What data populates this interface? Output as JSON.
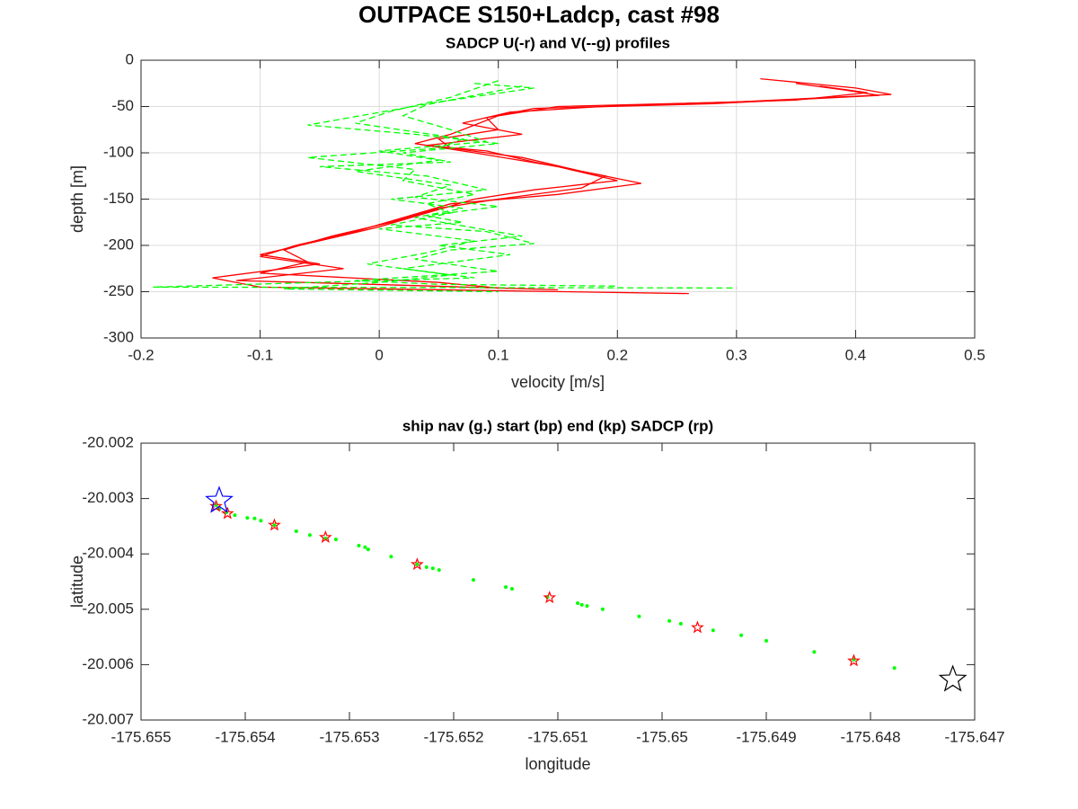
{
  "title": "OUTPACE S150+Ladcp, cast #98",
  "chart_data": [
    {
      "type": "line",
      "title": "SADCP U(-r) and V(--g) profiles",
      "xlabel": "velocity [m/s]",
      "ylabel": "depth [m]",
      "xlim": [
        -0.2,
        0.5
      ],
      "xticks": [
        -0.2,
        -0.1,
        0,
        0.1,
        0.2,
        0.3,
        0.4,
        0.5
      ],
      "ylim": [
        -300,
        0
      ],
      "yticks": [
        -300,
        -250,
        -200,
        -150,
        -100,
        -50,
        0
      ],
      "grid": true,
      "series": [
        {
          "color": "#ff0000",
          "dash": false,
          "x": [
            0.32,
            0.4,
            0.43,
            0.3,
            0.15,
            0.1,
            0.08,
            0.06,
            0.03,
            0.08,
            0.15,
            0.2,
            0.13,
            0.08,
            0.04,
            0,
            -0.05,
            -0.1,
            -0.05,
            -0.14,
            -0.1,
            0.26
          ],
          "values": [
            -20,
            -30,
            -37,
            -45,
            -50,
            -60,
            -70,
            -80,
            -90,
            -100,
            -115,
            -130,
            -140,
            -150,
            -165,
            -180,
            -195,
            -210,
            -220,
            -235,
            -245,
            -252
          ]
        },
        {
          "color": "#ff0000",
          "dash": false,
          "x": [
            0.35,
            0.39,
            0.42,
            0.28,
            0.13,
            0.09,
            0.1,
            0.05,
            0.06,
            0.12,
            0.17,
            0.22,
            0.15,
            0.06,
            0.02,
            -0.02,
            -0.07,
            -0.1,
            -0.03,
            -0.12,
            0.02,
            0.15
          ],
          "values": [
            -25,
            -32,
            -38,
            -47,
            -52,
            -62,
            -75,
            -85,
            -95,
            -105,
            -120,
            -133,
            -145,
            -155,
            -170,
            -185,
            -200,
            -212,
            -225,
            -238,
            -243,
            -248
          ]
        },
        {
          "color": "#ff0000",
          "dash": false,
          "x": [
            0.37,
            0.41,
            0.35,
            0.2,
            0.11,
            0.07,
            0.12,
            0.04,
            0.09,
            0.13,
            0.19,
            0.17,
            0.1,
            0.05,
            0.01,
            -0.04,
            -0.08,
            -0.06,
            -0.1,
            0.05,
            0.1
          ],
          "values": [
            -28,
            -35,
            -43,
            -49,
            -56,
            -68,
            -80,
            -92,
            -98,
            -110,
            -125,
            -138,
            -150,
            -160,
            -175,
            -190,
            -205,
            -218,
            -230,
            -240,
            -246
          ]
        },
        {
          "color": "#00ff00",
          "dash": true,
          "x": [
            0.08,
            0.13,
            0.05,
            -0.06,
            0.03,
            0.1,
            0.02,
            0.06,
            -0.05,
            0.04,
            0.09,
            0.01,
            0.07,
            0.03,
            0.12,
            0.05,
            0.11,
            0.02,
            0.08,
            -0.19,
            0.3
          ],
          "values": [
            -25,
            -30,
            -45,
            -70,
            -80,
            -90,
            -100,
            -110,
            -115,
            -125,
            -140,
            -150,
            -160,
            -170,
            -190,
            -200,
            -210,
            -225,
            -235,
            -245,
            -246
          ]
        },
        {
          "color": "#00ff00",
          "dash": true,
          "x": [
            0.1,
            0.06,
            0.01,
            -0.02,
            0.07,
            0.05,
            -0.06,
            0.03,
            0.02,
            0.08,
            0.04,
            0.06,
            0.01,
            0.09,
            0.13,
            0.06,
            0.03,
            0.1,
            -0.02,
            0.05,
            0.2
          ],
          "values": [
            -22,
            -40,
            -55,
            -68,
            -85,
            -95,
            -105,
            -118,
            -130,
            -145,
            -155,
            -165,
            -178,
            -185,
            -198,
            -205,
            -215,
            -228,
            -238,
            -242,
            -244
          ]
        },
        {
          "color": "#00ff00",
          "dash": true,
          "x": [
            0.12,
            0.04,
            0.02,
            0.06,
            0.09,
            0.0,
            0.05,
            -0.02,
            0.06,
            0.03,
            0.1,
            0.04,
            0.07,
            0.0,
            0.08,
            0.04,
            -0.01,
            0.06,
            0.0,
            -0.08,
            0.1
          ],
          "values": [
            -28,
            -48,
            -60,
            -75,
            -88,
            -98,
            -108,
            -120,
            -135,
            -148,
            -158,
            -168,
            -175,
            -182,
            -195,
            -208,
            -220,
            -232,
            -240,
            -247,
            -250
          ]
        }
      ]
    },
    {
      "type": "scatter",
      "title": "ship nav (g.) start (bp) end (kp) SADCP (rp)",
      "xlabel": "longitude",
      "ylabel": "latitude",
      "xlim": [
        -175.655,
        -175.647
      ],
      "xticks": [
        -175.655,
        -175.654,
        -175.653,
        -175.652,
        -175.651,
        -175.65,
        -175.649,
        -175.648,
        -175.647
      ],
      "ylim": [
        -20.007,
        -20.002
      ],
      "yticks": [
        -20.007,
        -20.006,
        -20.005,
        -20.004,
        -20.003,
        -20.002
      ],
      "grid": false,
      "series": [
        {
          "color": "#00ff00",
          "marker": "dot",
          "x": [
            -175.65428,
            -175.65425,
            -175.65418,
            -175.6541,
            -175.65398,
            -175.65391,
            -175.65385,
            -175.65372,
            -175.65351,
            -175.65338,
            -175.65323,
            -175.65313,
            -175.65291,
            -175.65285,
            -175.65282,
            -175.6526,
            -175.65235,
            -175.65226,
            -175.6522,
            -175.65214,
            -175.65181,
            -175.6515,
            -175.65144,
            -175.6511,
            -175.65081,
            -175.65077,
            -175.65072,
            -175.65057,
            -175.65022,
            -175.64993,
            -175.64982,
            -175.64951,
            -175.64924,
            -175.649,
            -175.64854,
            -175.64816,
            -175.64777
          ],
          "values": [
            -20.00312,
            -20.00319,
            -20.00325,
            -20.0033,
            -20.00335,
            -20.00336,
            -20.0034,
            -20.00348,
            -20.00359,
            -20.00366,
            -20.00372,
            -20.00374,
            -20.00385,
            -20.00388,
            -20.00392,
            -20.00405,
            -20.00419,
            -20.00424,
            -20.00426,
            -20.00429,
            -20.00447,
            -20.0046,
            -20.00463,
            -20.00478,
            -20.00489,
            -20.00492,
            -20.00494,
            -20.005,
            -20.00513,
            -20.00521,
            -20.00526,
            -20.00538,
            -20.00547,
            -20.00557,
            -20.00577,
            -20.00591,
            -20.00606
          ]
        },
        {
          "color": "#ff0000",
          "marker": "star",
          "size": 6,
          "x": [
            -175.65428,
            -175.65417,
            -175.65372,
            -175.65323,
            -175.65235,
            -175.65108,
            -175.64966,
            -175.64816
          ],
          "values": [
            -20.00314,
            -20.00327,
            -20.00348,
            -20.0037,
            -20.00419,
            -20.00479,
            -20.00533,
            -20.00593
          ]
        },
        {
          "color": "#0000ff",
          "marker": "star",
          "size": 15,
          "x": [
            -175.65425
          ],
          "values": [
            -20.00304
          ]
        },
        {
          "color": "#000000",
          "marker": "star",
          "size": 15,
          "x": [
            -175.64721
          ],
          "values": [
            -20.00627
          ]
        }
      ]
    }
  ]
}
